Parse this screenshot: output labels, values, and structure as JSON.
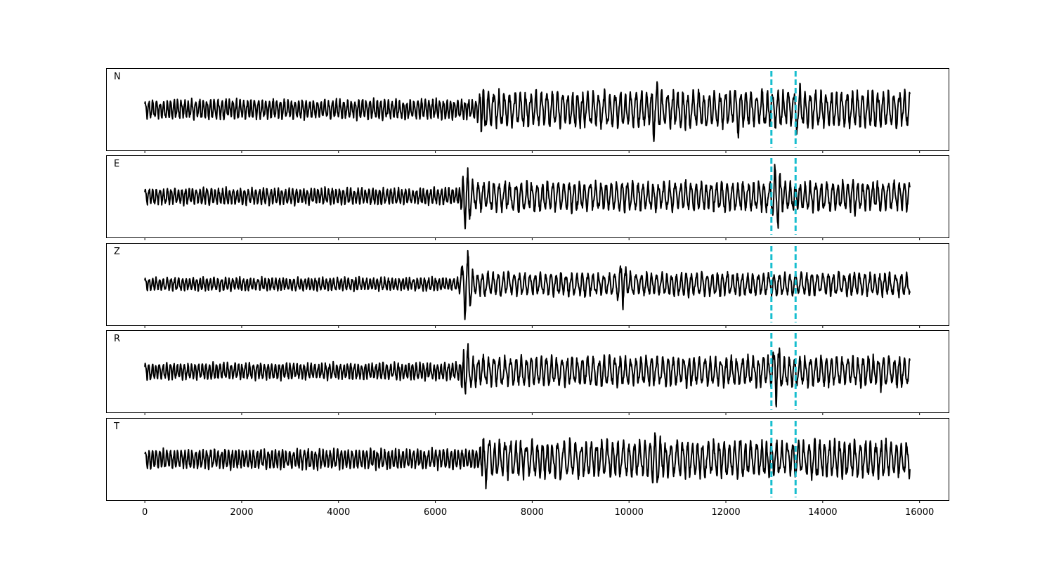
{
  "chart_data": {
    "type": "line",
    "title": "",
    "xlabel": "",
    "ylabel": "",
    "xlim": [
      -800,
      16600
    ],
    "xticks": [
      0,
      2000,
      4000,
      6000,
      8000,
      10000,
      12000,
      14000,
      16000
    ],
    "x_range": [
      0,
      15800
    ],
    "y_ticks_visible": false,
    "grid": false,
    "trace_color": "#000000",
    "marker_color": "#17becf",
    "markers_x": [
      12940,
      13440
    ],
    "panels": [
      {
        "label": "N",
        "events": [
          {
            "x": 7000,
            "amplitude": 0.8
          },
          {
            "x": 10550,
            "amplitude": 0.95
          },
          {
            "x": 12250,
            "amplitude": 0.75
          },
          {
            "x": 13500,
            "amplitude": 0.8
          }
        ],
        "background_amplitude": 0.3,
        "late_amplitude": 0.55,
        "late_start_x": 7000
      },
      {
        "label": "E",
        "events": [
          {
            "x": 6650,
            "amplitude": 0.95
          },
          {
            "x": 13050,
            "amplitude": 1.0
          },
          {
            "x": 14650,
            "amplitude": 0.6
          }
        ],
        "background_amplitude": 0.25,
        "late_amplitude": 0.45,
        "late_start_x": 6600
      },
      {
        "label": "Z",
        "events": [
          {
            "x": 6650,
            "amplitude": 1.0
          },
          {
            "x": 9850,
            "amplitude": 0.7
          }
        ],
        "background_amplitude": 0.2,
        "late_amplitude": 0.35,
        "late_start_x": 6500
      },
      {
        "label": "R",
        "events": [
          {
            "x": 6650,
            "amplitude": 0.8
          },
          {
            "x": 13050,
            "amplitude": 1.0
          },
          {
            "x": 15200,
            "amplitude": 0.55
          }
        ],
        "background_amplitude": 0.25,
        "late_amplitude": 0.45,
        "late_start_x": 6600
      },
      {
        "label": "T",
        "events": [
          {
            "x": 7050,
            "amplitude": 0.85
          },
          {
            "x": 10550,
            "amplitude": 1.0
          },
          {
            "x": 12300,
            "amplitude": 0.8
          },
          {
            "x": 13850,
            "amplitude": 0.8
          }
        ],
        "background_amplitude": 0.3,
        "late_amplitude": 0.55,
        "late_start_x": 7000
      }
    ]
  }
}
